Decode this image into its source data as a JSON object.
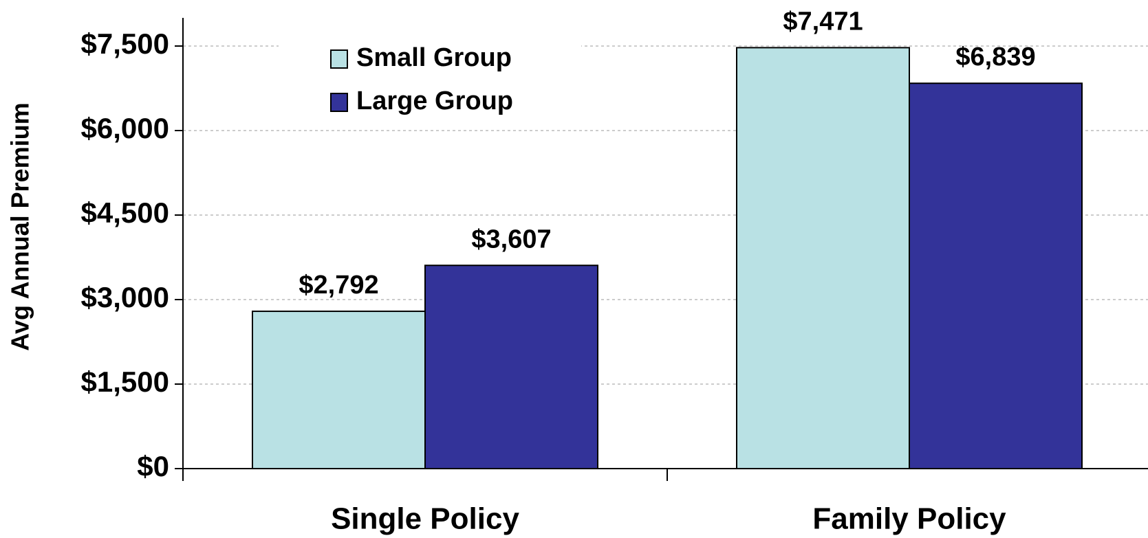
{
  "chart_data": {
    "type": "bar",
    "y_label": "Avg Annual Premium",
    "categories": [
      "Single Policy",
      "Family Policy"
    ],
    "series": [
      {
        "name": "Small Group",
        "color": "#b9e1e4",
        "values": [
          2792,
          7471
        ],
        "value_labels": [
          "$2,792",
          "$7,471"
        ]
      },
      {
        "name": "Large Group",
        "color": "#333399",
        "values": [
          3607,
          6839
        ],
        "value_labels": [
          "$3,607",
          "$6,839"
        ]
      }
    ],
    "ylim": [
      0,
      7500
    ],
    "yticks": [
      {
        "value": 0,
        "label": "$0"
      },
      {
        "value": 1500,
        "label": "$1,500"
      },
      {
        "value": 3000,
        "label": "$3,000"
      },
      {
        "value": 4500,
        "label": "$4,500"
      },
      {
        "value": 6000,
        "label": "$6,000"
      },
      {
        "value": 7500,
        "label": "$7,500"
      }
    ],
    "grid": true,
    "legend": "top-left"
  }
}
